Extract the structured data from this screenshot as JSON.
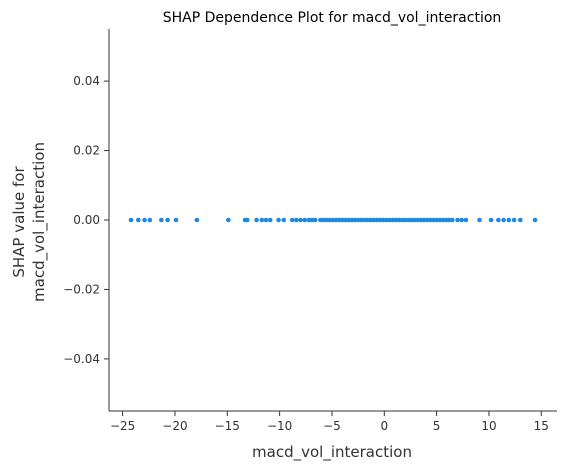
{
  "chart_data": {
    "type": "scatter",
    "title": "SHAP Dependence Plot for macd_vol_interaction",
    "xlabel": "macd_vol_interaction",
    "ylabel_lines": [
      "SHAP value for",
      "macd_vol_interaction"
    ],
    "xlim": [
      -26.3,
      16.5
    ],
    "ylim": [
      -0.055,
      0.055
    ],
    "x_ticks": [
      -25,
      -20,
      -15,
      -10,
      -5,
      0,
      5,
      10,
      15
    ],
    "x_tick_labels": [
      "−25",
      "−20",
      "−15",
      "−10",
      "−5",
      "0",
      "5",
      "10",
      "15"
    ],
    "y_ticks": [
      -0.04,
      -0.02,
      0.0,
      0.02,
      0.04
    ],
    "y_tick_labels": [
      "−0.04",
      "−0.02",
      "0.00",
      "0.02",
      "0.04"
    ],
    "grid": false,
    "point_color": "#1E88E5",
    "x": [
      -24.2,
      -23.5,
      -22.9,
      -22.4,
      -21.3,
      -20.7,
      -19.9,
      -17.9,
      -14.9,
      -13.3,
      -13.1,
      -12.2,
      -11.7,
      -11.3,
      -10.9,
      -10.1,
      -9.6,
      -8.8,
      -8.4,
      -8.0,
      -7.6,
      -7.2,
      -6.9,
      -6.6,
      -6.1,
      -5.8,
      -5.5,
      -5.2,
      -4.9,
      -4.6,
      -4.3,
      -4.0,
      -3.7,
      -3.4,
      -3.1,
      -2.8,
      -2.5,
      -2.2,
      -1.9,
      -1.6,
      -1.3,
      -1.0,
      -0.7,
      -0.4,
      -0.1,
      0.2,
      0.5,
      0.8,
      1.1,
      1.4,
      1.7,
      2.0,
      2.3,
      2.6,
      2.9,
      3.2,
      3.5,
      3.8,
      4.1,
      4.4,
      4.7,
      5.0,
      5.3,
      5.6,
      5.9,
      6.2,
      6.5,
      7.0,
      7.4,
      7.8,
      9.1,
      10.2,
      10.9,
      11.4,
      11.9,
      12.4,
      13.0,
      14.4
    ],
    "y": [
      0,
      0,
      0,
      0,
      0,
      0,
      0,
      0,
      0,
      0,
      0,
      0,
      0,
      0,
      0,
      0,
      0,
      0,
      0,
      0,
      0,
      0,
      0,
      0,
      0,
      0,
      0,
      0,
      0,
      0,
      0,
      0,
      0,
      0,
      0,
      0,
      0,
      0,
      0,
      0,
      0,
      0,
      0,
      0,
      0,
      0,
      0,
      0,
      0,
      0,
      0,
      0,
      0,
      0,
      0,
      0,
      0,
      0,
      0,
      0,
      0,
      0,
      0,
      0,
      0,
      0,
      0,
      0,
      0,
      0,
      0,
      0,
      0,
      0,
      0,
      0,
      0,
      0
    ]
  }
}
